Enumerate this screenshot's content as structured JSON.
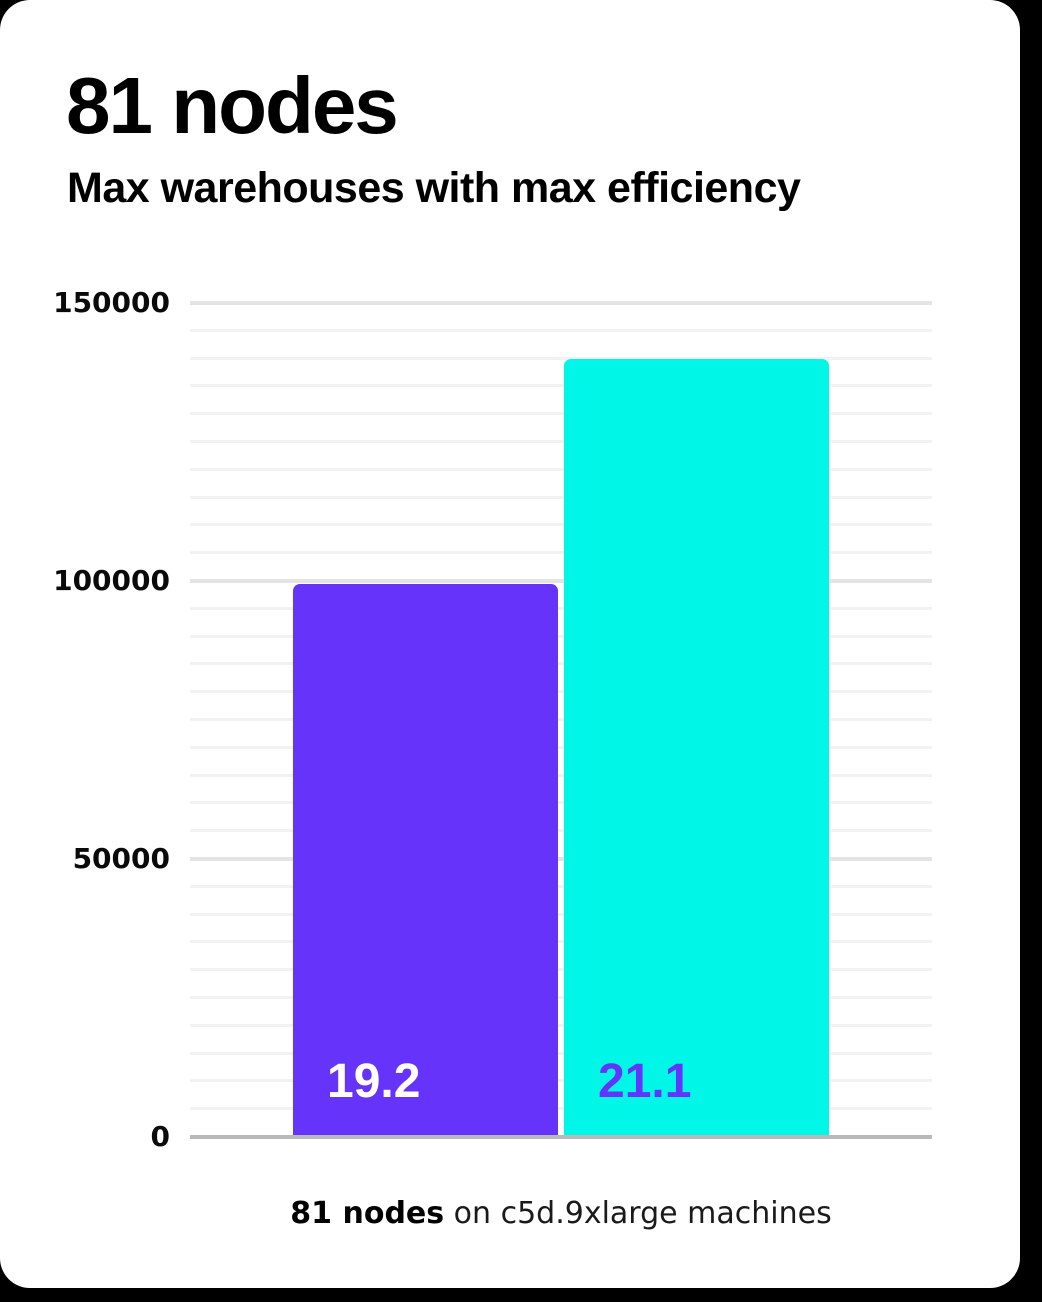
{
  "page": {
    "background_color": "#000000",
    "card_color": "#ffffff"
  },
  "header": {
    "title": "81 nodes",
    "subtitle": "Max warehouses with max efficiency"
  },
  "chart_data": {
    "type": "bar",
    "title": "81 nodes",
    "subtitle": "Max warehouses with max efficiency",
    "categories": [
      "19.2",
      "21.1"
    ],
    "series": [
      {
        "name": "Max warehouses with max efficiency",
        "values": [
          99500,
          140000
        ]
      }
    ],
    "bar_colors": [
      "#6633fa",
      "#00f7e8"
    ],
    "bar_label_colors": [
      "#ffffff",
      "#6633fa"
    ],
    "ylim": [
      0,
      150000
    ],
    "yticks": [
      0,
      50000,
      100000,
      150000
    ],
    "minor_grid_step": 5000,
    "grid": true,
    "legend": false,
    "xlabel": "",
    "ylabel": ""
  },
  "caption": {
    "bold": "81 nodes",
    "rest": " on c5d.9xlarge machines"
  }
}
